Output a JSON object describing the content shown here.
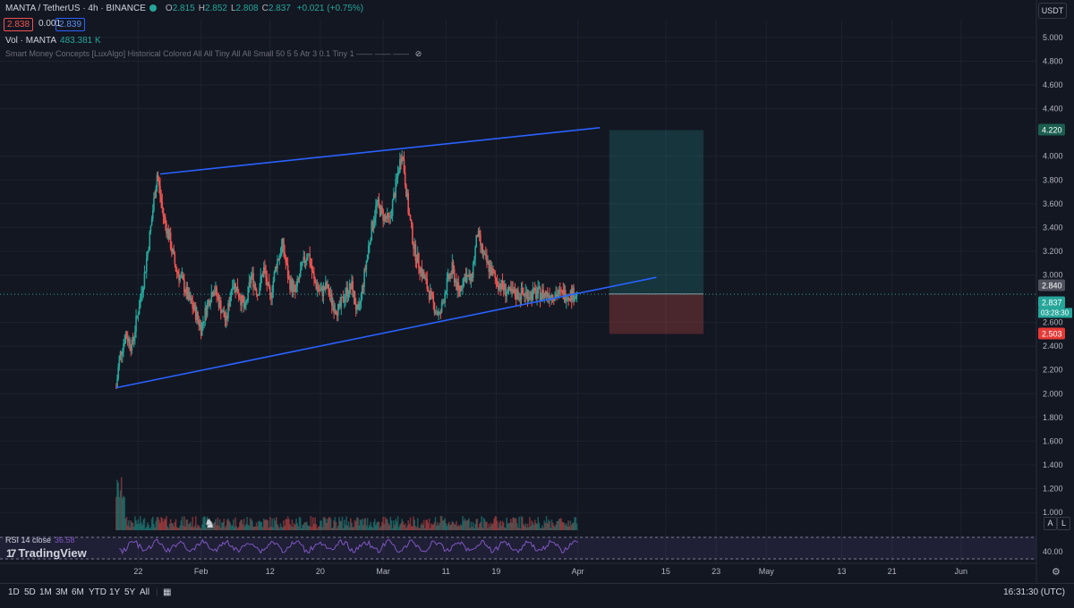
{
  "header": {
    "symbol": "MANTA / TetherUS · 4h · BINANCE",
    "o_label": "O",
    "o": "2.815",
    "h_label": "H",
    "h": "2.852",
    "l_label": "L",
    "l": "2.808",
    "c_label": "C",
    "c": "2.837",
    "change": "+0.021 (+0.75%)",
    "bid": "2.838",
    "spread": "0.001",
    "ask": "2.839"
  },
  "volume": {
    "label": "Vol · MANTA",
    "value": "483.381 K"
  },
  "indicator": "Smart Money Concepts [LuxAlgo] Historical Colored All All Tiny All All Small 50 5 5 Atr 3 0.1 Tiny 1 —— —— ——",
  "currency": "USDT",
  "rsi": {
    "label": "RSI 14 close",
    "value": "36.58"
  },
  "brand": "TradingView",
  "price_axis": {
    "ticks": [
      "5.000",
      "4.800",
      "4.600",
      "4.400",
      "4.000",
      "3.800",
      "3.600",
      "3.400",
      "3.200",
      "3.000",
      "2.600",
      "2.400",
      "2.200",
      "2.000",
      "1.800",
      "1.600",
      "1.400",
      "1.200",
      "1.000"
    ],
    "tick_values": [
      5.0,
      4.8,
      4.6,
      4.4,
      4.0,
      3.8,
      3.6,
      3.4,
      3.2,
      3.0,
      2.6,
      2.4,
      2.2,
      2.0,
      1.8,
      1.6,
      1.4,
      1.2,
      1.0
    ],
    "target_label": "4.220",
    "target": 4.22,
    "entry_label": "2.840",
    "entry": 2.84,
    "last_label": "2.837",
    "last": 2.837,
    "countdown": "03:28:30",
    "stop_label": "2.503",
    "stop": 2.503,
    "rsi_tick": "40.00",
    "up_color": "#26a69a",
    "down_color": "#ef5350"
  },
  "time_axis": {
    "ticks": [
      {
        "label": "22",
        "day": 22
      },
      {
        "label": "Feb",
        "day": 32
      },
      {
        "label": "12",
        "day": 43
      },
      {
        "label": "20",
        "day": 51
      },
      {
        "label": "Mar",
        "day": 61
      },
      {
        "label": "11",
        "day": 71
      },
      {
        "label": "19",
        "day": 79
      },
      {
        "label": "Apr",
        "day": 92
      },
      {
        "label": "15",
        "day": 106
      },
      {
        "label": "23",
        "day": 114
      },
      {
        "label": "May",
        "day": 122
      },
      {
        "label": "13",
        "day": 134
      },
      {
        "label": "21",
        "day": 142
      },
      {
        "label": "Jun",
        "day": 153
      }
    ]
  },
  "timeframes": [
    "1D",
    "5D",
    "1M",
    "3M",
    "6M",
    "YTD",
    "1Y",
    "5Y",
    "All"
  ],
  "clock": "16:31:30 (UTC)",
  "scale_buttons": [
    "A",
    "L"
  ],
  "chart_data": {
    "type": "line",
    "title": "",
    "x_unit": "day of year",
    "series": [
      {
        "x": [
          18.5,
          19,
          20,
          21,
          22,
          23,
          24,
          25,
          26,
          27,
          28,
          29,
          30,
          31,
          32,
          33,
          34,
          35,
          36,
          37,
          38,
          39,
          40,
          41,
          42,
          43,
          44,
          45,
          46,
          47,
          48,
          49,
          50,
          51,
          52,
          53,
          54,
          55,
          56,
          57,
          58,
          59,
          60,
          61,
          62,
          63,
          64,
          65,
          66,
          67,
          68,
          69,
          70,
          71,
          72,
          73,
          74,
          75,
          76,
          77,
          78,
          79,
          80,
          81,
          82,
          83,
          84,
          85,
          86,
          87,
          88,
          89,
          90,
          91,
          92
        ],
        "values": [
          2.05,
          2.3,
          2.5,
          2.4,
          2.7,
          3.0,
          3.4,
          3.85,
          3.5,
          3.3,
          3.05,
          2.95,
          2.8,
          2.7,
          2.55,
          2.75,
          2.9,
          2.75,
          2.6,
          2.95,
          2.85,
          2.7,
          3.0,
          2.85,
          3.05,
          2.8,
          3.1,
          3.25,
          2.95,
          2.85,
          3.05,
          3.2,
          2.95,
          2.85,
          2.9,
          2.75,
          2.7,
          2.85,
          2.9,
          2.65,
          3.0,
          3.35,
          3.6,
          3.5,
          3.45,
          3.75,
          4.05,
          3.55,
          3.2,
          3.05,
          2.9,
          2.75,
          2.65,
          2.9,
          3.05,
          2.85,
          3.0,
          2.95,
          3.35,
          3.15,
          3.05,
          2.95,
          2.9,
          2.84,
          2.837,
          2.84,
          2.84,
          2.84,
          2.84,
          2.84,
          2.84,
          2.84,
          2.84,
          2.84,
          2.837
        ]
      }
    ],
    "drawings": {
      "upper_trendline": {
        "x1": 25.5,
        "y1": 3.85,
        "x2": 95.5,
        "y2": 4.24
      },
      "lower_trendline": {
        "x1": 18.5,
        "y1": 2.05,
        "x2": 104.5,
        "y2": 2.98
      },
      "long_position": {
        "x_start": 97,
        "x_end": 112,
        "entry": 2.84,
        "target": 4.22,
        "stop": 2.503
      }
    },
    "ylim": [
      0.85,
      5.15
    ],
    "xlim": [
      0,
      165
    ]
  }
}
